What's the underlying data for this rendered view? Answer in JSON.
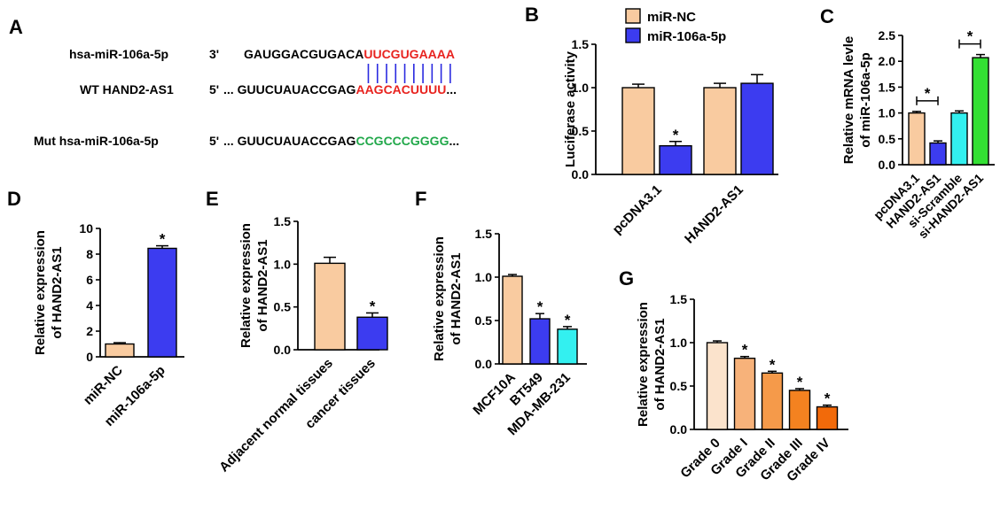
{
  "panels": {
    "A": {
      "letter": "A",
      "rows": [
        {
          "label": "hsa-miR-106a-5p",
          "end": "3'",
          "dots": "",
          "black": "GAUGGACGUGACA",
          "colored": "UUCGUGAAAA",
          "trail": ""
        },
        {
          "label": "WT HAND2-AS1",
          "end": "5'",
          "dots": "...",
          "black": "GUUCUAUACCGAG",
          "colored": "AAGCACUUUU",
          "trail": "..."
        },
        {
          "label": "Mut hsa-miR-106a-5p",
          "end": "5'",
          "dots": "...",
          "black": "GUUCUAUACCGAG",
          "colored": "CCGCCCGGGG",
          "trail": "..."
        }
      ],
      "colors": {
        "red": "#e8231f",
        "green": "#21a84a",
        "line": "#2a2ae0"
      }
    }
  },
  "chart_data": [
    {
      "panel": "B",
      "type": "bar",
      "ylabel": "Luciferase activity",
      "ylim": [
        0,
        1.5
      ],
      "yticks": [
        "0.0",
        "0.5",
        "1.0",
        "1.5"
      ],
      "categories": [
        "pcDNA3.1",
        "HAND2-AS1"
      ],
      "series": [
        {
          "name": "miR-NC",
          "color": "#f9cba0",
          "values": [
            1.0,
            1.0
          ],
          "errors": [
            0.04,
            0.05
          ]
        },
        {
          "name": "miR-106a-5p",
          "color": "#3c3cf0",
          "values": [
            0.33,
            1.05
          ],
          "errors": [
            0.05,
            0.1
          ]
        }
      ],
      "significance": [
        {
          "series": 1,
          "category": 0,
          "mark": "*"
        }
      ],
      "legend_position": "top"
    },
    {
      "panel": "C",
      "type": "bar",
      "ylabel": "Relative mRNA levle of miR-106a-5p",
      "ylim": [
        0,
        2.5
      ],
      "yticks": [
        "0.0",
        "0.5",
        "1.0",
        "1.5",
        "2.0",
        "2.5"
      ],
      "categories": [
        "pcDNA3.1",
        "HAND2-AS1",
        "si-Scramble",
        "si-HAND2-AS1"
      ],
      "values": [
        1.0,
        0.42,
        1.0,
        2.07
      ],
      "errors": [
        0.03,
        0.04,
        0.04,
        0.06
      ],
      "colors": [
        "#f9cba0",
        "#3c3cf0",
        "#33f0f0",
        "#33e033"
      ],
      "brackets": [
        {
          "from": 0,
          "to": 1,
          "mark": "*"
        },
        {
          "from": 2,
          "to": 3,
          "mark": "*"
        }
      ]
    },
    {
      "panel": "D",
      "type": "bar",
      "ylabel": "Relative expression of HAND2-AS1",
      "ylim": [
        0,
        10
      ],
      "yticks": [
        "0",
        "2",
        "4",
        "6",
        "8",
        "10"
      ],
      "categories": [
        "miR-NC",
        "miR-106a-5p"
      ],
      "values": [
        1.0,
        8.45
      ],
      "errors": [
        0.1,
        0.2
      ],
      "colors": [
        "#f9cba0",
        "#3c3cf0"
      ],
      "marks": [
        "",
        "*"
      ]
    },
    {
      "panel": "E",
      "type": "bar",
      "ylabel": "Relative expression of HAND2-AS1",
      "ylim": [
        0,
        1.5
      ],
      "yticks": [
        "0.0",
        "0.5",
        "1.0",
        "1.5"
      ],
      "categories": [
        "Adjacent normal tissues",
        "cancer tissues"
      ],
      "values": [
        1.01,
        0.38
      ],
      "errors": [
        0.07,
        0.05
      ],
      "colors": [
        "#f9cba0",
        "#3c3cf0"
      ],
      "marks": [
        "",
        "*"
      ]
    },
    {
      "panel": "F",
      "type": "bar",
      "ylabel": "Relative expression of HAND2-AS1",
      "ylim": [
        0,
        1.5
      ],
      "yticks": [
        "0.0",
        "0.5",
        "1.0",
        "1.5"
      ],
      "categories": [
        "MCF10A",
        "BT549",
        "MDA-MB-231"
      ],
      "values": [
        1.01,
        0.52,
        0.4
      ],
      "errors": [
        0.02,
        0.06,
        0.03
      ],
      "colors": [
        "#f9cba0",
        "#3c3cf0",
        "#33f0f0"
      ],
      "marks": [
        "",
        "*",
        "*"
      ]
    },
    {
      "panel": "G",
      "type": "bar",
      "ylabel": "Relative expression of HAND2-AS1",
      "ylim": [
        0,
        1.5
      ],
      "yticks": [
        "0.0",
        "0.5",
        "1.0",
        "1.5"
      ],
      "categories": [
        "Grade 0",
        "Grade I",
        "Grade II",
        "Grade III",
        "Grade IV"
      ],
      "values": [
        1.0,
        0.82,
        0.65,
        0.45,
        0.26
      ],
      "errors": [
        0.02,
        0.02,
        0.02,
        0.02,
        0.02
      ],
      "colors": [
        "#fbe3cc",
        "#f7b27a",
        "#f59a4a",
        "#f48220",
        "#f26a0a"
      ],
      "marks": [
        "",
        "*",
        "*",
        "*",
        "*"
      ]
    }
  ]
}
